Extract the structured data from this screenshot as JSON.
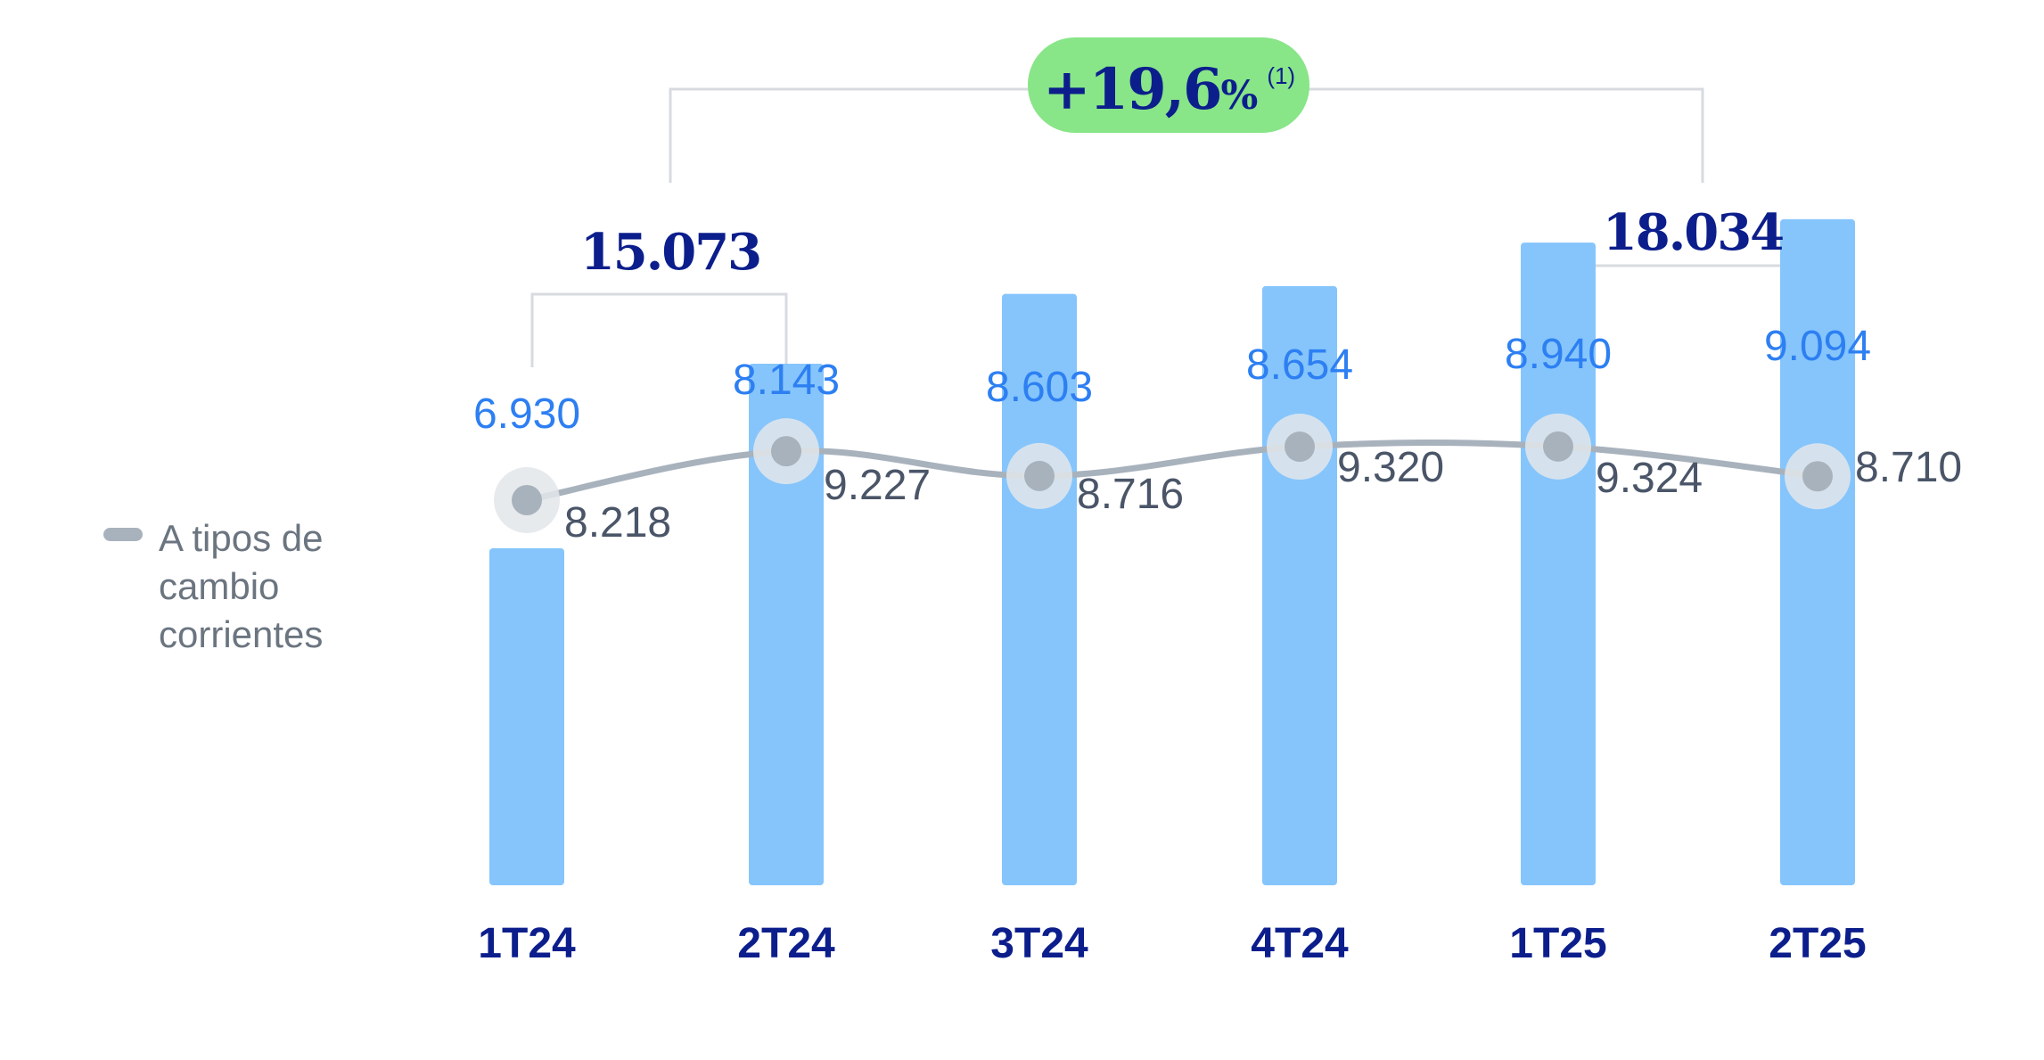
{
  "colors": {
    "bar": "#85c5fc",
    "bar_label": "#2d7ff2",
    "line": "#a8b2bd",
    "marker": "#a8b2bd",
    "marker_halo": "#e3e6ea",
    "line_label": "#4a5568",
    "axis_label": "#0c1e8c",
    "total_label": "#0c1e8c",
    "bracket": "#d7dbe0",
    "badge_bg": "#88e588",
    "badge_text": "#0c1e8c",
    "legend_text": "#6b7580"
  },
  "legend": {
    "line1": "A tipos de",
    "line2": "cambio",
    "line3": "corrientes"
  },
  "growth_badge": {
    "value": "+19,6",
    "unit": "%",
    "note": "(1)"
  },
  "totals": [
    {
      "label": "15.073",
      "from": "1T24",
      "to": "2T24"
    },
    {
      "label": "18.034",
      "from": "1T25",
      "to": "2T25"
    }
  ],
  "chart_data": {
    "type": "bar",
    "categories": [
      "1T24",
      "2T24",
      "3T24",
      "4T24",
      "1T25",
      "2T25"
    ],
    "series": [
      {
        "type": "bar",
        "values": [
          6930,
          8143,
          8603,
          8654,
          8940,
          9094
        ],
        "labels": [
          "6.930",
          "8.143",
          "8.603",
          "8.654",
          "8.940",
          "9.094"
        ]
      },
      {
        "name": "A tipos de cambio corrientes",
        "type": "line",
        "values": [
          8218,
          9227,
          8716,
          9320,
          9324,
          8710
        ],
        "labels": [
          "8.218",
          "9.227",
          "8.716",
          "9.320",
          "9.324",
          "8.710"
        ]
      }
    ],
    "legend_position": "left",
    "grid": false
  }
}
